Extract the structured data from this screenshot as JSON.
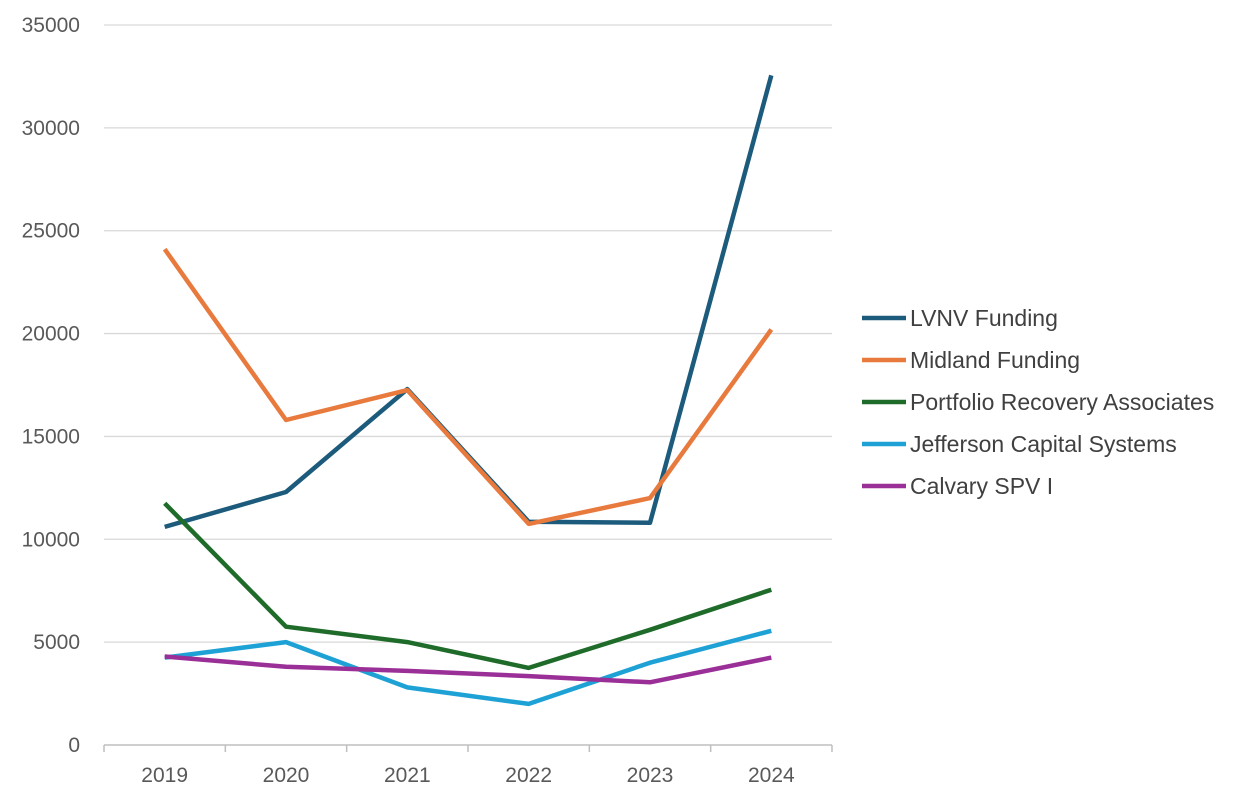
{
  "chart_data": {
    "type": "line",
    "categories": [
      "2019",
      "2020",
      "2021",
      "2022",
      "2023",
      "2024"
    ],
    "series": [
      {
        "name": "LVNV Funding",
        "color": "#1c5b7c",
        "values": [
          10600,
          12300,
          17300,
          10850,
          10800,
          32550
        ]
      },
      {
        "name": "Midland Funding",
        "color": "#e87a3e",
        "values": [
          24100,
          15800,
          17250,
          10750,
          12000,
          20200
        ]
      },
      {
        "name": "Portfolio Recovery Associates",
        "color": "#1f6b2a",
        "values": [
          11750,
          5750,
          5000,
          3750,
          5600,
          7550
        ]
      },
      {
        "name": "Jefferson Capital Systems",
        "color": "#1ea2d6",
        "values": [
          4250,
          5000,
          2800,
          2000,
          4000,
          5550
        ]
      },
      {
        "name": "Calvary SPV I",
        "color": "#9b2f98",
        "values": [
          4300,
          3800,
          3600,
          3350,
          3050,
          4250
        ]
      }
    ],
    "yticks": [
      "0",
      "5000",
      "10000",
      "15000",
      "20000",
      "25000",
      "30000",
      "35000"
    ],
    "ylim": [
      0,
      35000
    ],
    "grid": true,
    "legend": "right"
  }
}
